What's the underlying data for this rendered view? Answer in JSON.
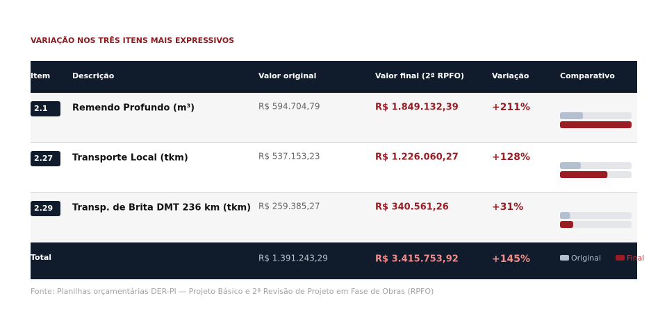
{
  "title": "VARIAÇÃO NOS TRÊS ITENS MAIS EXPRESSIVOS",
  "table": {
    "headers": [
      "Item",
      "Descrição",
      "Valor original",
      "Valor final (2ª RPFO)",
      "Variação",
      "Comparativo"
    ],
    "rows": [
      {
        "item": "2.1",
        "description": "Remendo Profundo (m³)",
        "original": {
          "value": 594704.79,
          "label": "R$ 594.704,79"
        },
        "final": {
          "value": 1849132.39,
          "label": "R$ 1.849.132,39"
        },
        "variation": {
          "value": 211,
          "label": "+211%"
        }
      },
      {
        "item": "2.27",
        "description": "Transporte Local (tkm)",
        "original": {
          "value": 537153.23,
          "label": "R$ 537.153,23"
        },
        "final": {
          "value": 1226060.27,
          "label": "R$ 1.226.060,27"
        },
        "variation": {
          "value": 128,
          "label": "+128%"
        }
      },
      {
        "item": "2.29",
        "description": "Transp. de Brita DMT 236 km (tkm)",
        "original": {
          "value": 259385.27,
          "label": "R$ 259.385,27"
        },
        "final": {
          "value": 340561.26,
          "label": "R$ 340.561,26"
        },
        "variation": {
          "value": 31,
          "label": "+31%"
        }
      }
    ],
    "total": {
      "label": "Total",
      "original": {
        "value": 1391243.29,
        "label": "R$ 1.391.243,29"
      },
      "final": {
        "value": 3415753.92,
        "label": "R$ 3.415.753,92"
      },
      "variation": {
        "value": 145,
        "label": "+145%"
      }
    },
    "legend": {
      "original": "Original",
      "final": "Final"
    }
  },
  "source": "Fonte: Planilhas orçamentárias DER-PI — Projeto Básico e 2ª Revisão de Projeto em Fase de Obras (RPFO)"
}
